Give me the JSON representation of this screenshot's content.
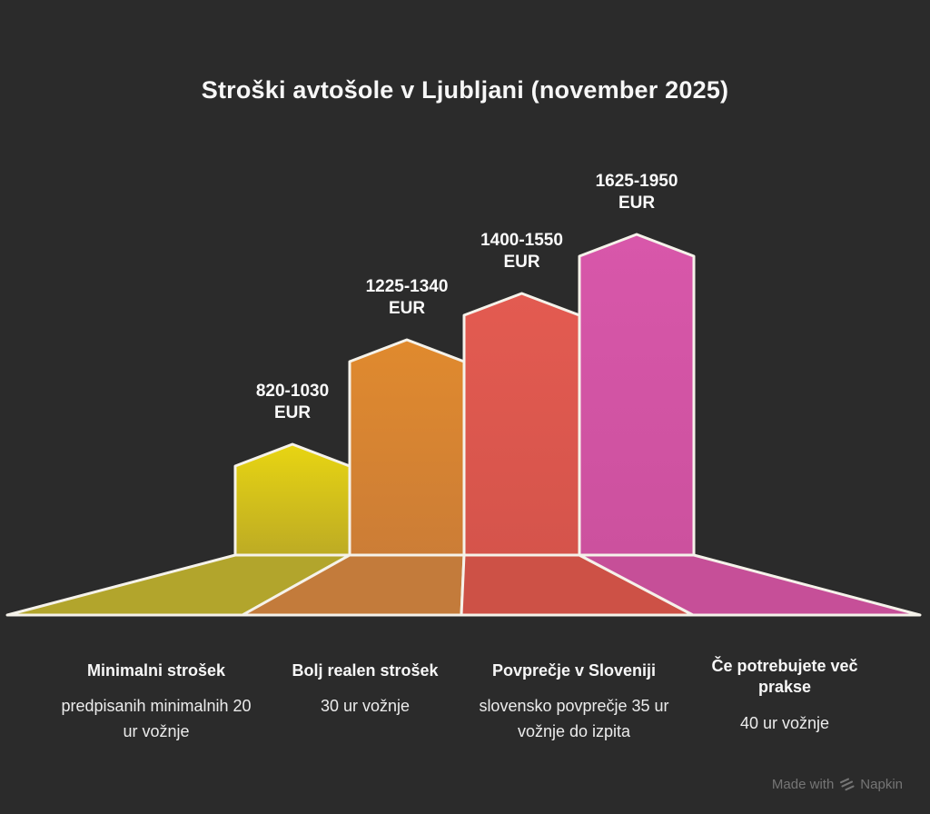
{
  "title": "Stroški avtošole v Ljubljani (november 2025)",
  "chart_data": {
    "type": "bar",
    "title": "Stroški avtošole v Ljubljani (november 2025)",
    "unit": "EUR",
    "categories": [
      "Minimalni strošek",
      "Bolj realen strošek",
      "Povprečje v Sloveniji",
      "Če potrebujete več prakse"
    ],
    "series": [
      {
        "name": "Strošek min (EUR)",
        "values": [
          820,
          1225,
          1400,
          1625
        ]
      },
      {
        "name": "Strošek max (EUR)",
        "values": [
          1030,
          1340,
          1550,
          1950
        ]
      }
    ],
    "background": "#2b2b2b",
    "outline_color": "#f5f2ea",
    "bars": [
      {
        "category": "Minimalni strošek",
        "description": "predpisanih minimalnih 20 ur vožnje",
        "range": "820-1030",
        "unit": "EUR",
        "value_min": 820,
        "value_max": 1030,
        "color_top": "#e8d512",
        "color_bottom": "#bdab24",
        "color_floor": "#b2a52c"
      },
      {
        "category": "Bolj realen strošek",
        "description": "30 ur vožnje",
        "range": "1225-1340",
        "unit": "EUR",
        "value_min": 1225,
        "value_max": 1340,
        "color_top": "#e08a2e",
        "color_bottom": "#cc7d36",
        "color_floor": "#c37b3b"
      },
      {
        "category": "Povprečje v Sloveniji",
        "description": "slovensko povprečje 35 ur vožnje do izpita",
        "range": "1400-1550",
        "unit": "EUR",
        "value_min": 1400,
        "value_max": 1550,
        "color_top": "#e35b51",
        "color_bottom": "#d5544b",
        "color_floor": "#cd5146"
      },
      {
        "category": "Če potrebujete več prakse",
        "description": "40 ur vožnje",
        "range": "1625-1950",
        "unit": "EUR",
        "value_min": 1625,
        "value_max": 1950,
        "color_top": "#d857aa",
        "color_bottom": "#cc519e",
        "color_floor": "#c64f98"
      }
    ]
  },
  "watermark": {
    "prefix": "Made with",
    "brand": "Napkin"
  }
}
